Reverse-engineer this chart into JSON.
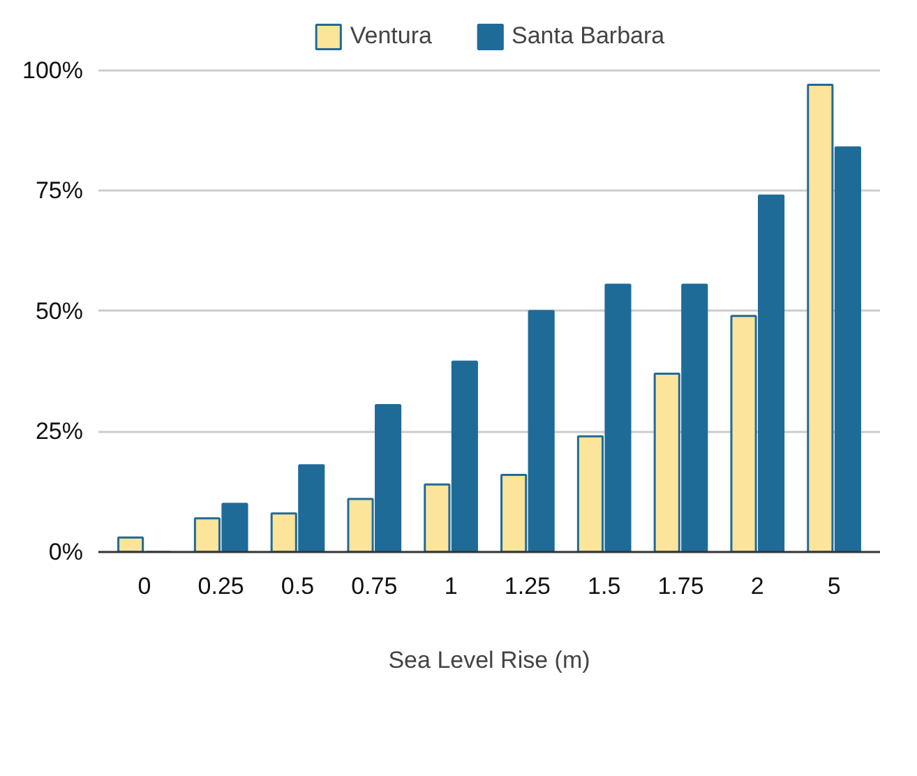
{
  "chart_data": {
    "type": "bar",
    "xlabel": "Sea Level Rise (m)",
    "categories": [
      "0",
      "0.25",
      "0.5",
      "0.75",
      "1",
      "1.25",
      "1.5",
      "1.75",
      "2",
      "5"
    ],
    "series": [
      {
        "name": "Ventura",
        "color": "#fce49a",
        "values": [
          3,
          7,
          8,
          11,
          14,
          16,
          24,
          37,
          49,
          97
        ]
      },
      {
        "name": "Santa Barbara",
        "color": "#1f6b98",
        "values": [
          0,
          10,
          18,
          30.5,
          39.5,
          50,
          55.5,
          55.5,
          74,
          84
        ]
      }
    ],
    "ylim": [
      0,
      100
    ],
    "yticks": [
      {
        "value": 0,
        "label": "0%"
      },
      {
        "value": 25,
        "label": "25%"
      },
      {
        "value": 50,
        "label": "50%"
      },
      {
        "value": 75,
        "label": "75%"
      },
      {
        "value": 100,
        "label": "100%"
      }
    ],
    "grid": "y",
    "legend": "top"
  }
}
